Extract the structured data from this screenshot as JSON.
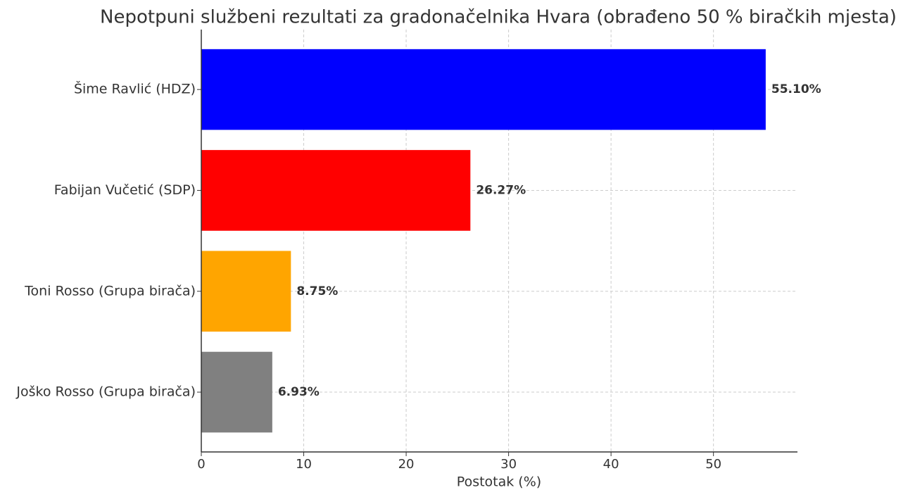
{
  "chart_data": {
    "type": "barh",
    "title": "Nepotpuni službeni rezultati za gradonačelnika Hvara (obrađeno 50 % biračkih mjesta)",
    "xlabel": "Postotak (%)",
    "categories": [
      "Šime Ravlić (HDZ)",
      "Fabijan Vučetić (SDP)",
      "Toni Rosso (Grupa birača)",
      "Joško Rosso (Grupa birača)"
    ],
    "values": [
      55.1,
      26.27,
      8.75,
      6.93
    ],
    "value_labels": [
      "55.10%",
      "26.27%",
      "8.75%",
      "6.93%"
    ],
    "colors": [
      "#0000ff",
      "#ff0000",
      "#ffa500",
      "#808080"
    ],
    "xlim": [
      0,
      58.2
    ],
    "xticks": [
      0,
      10,
      20,
      30,
      40,
      50
    ],
    "grid": true
  }
}
